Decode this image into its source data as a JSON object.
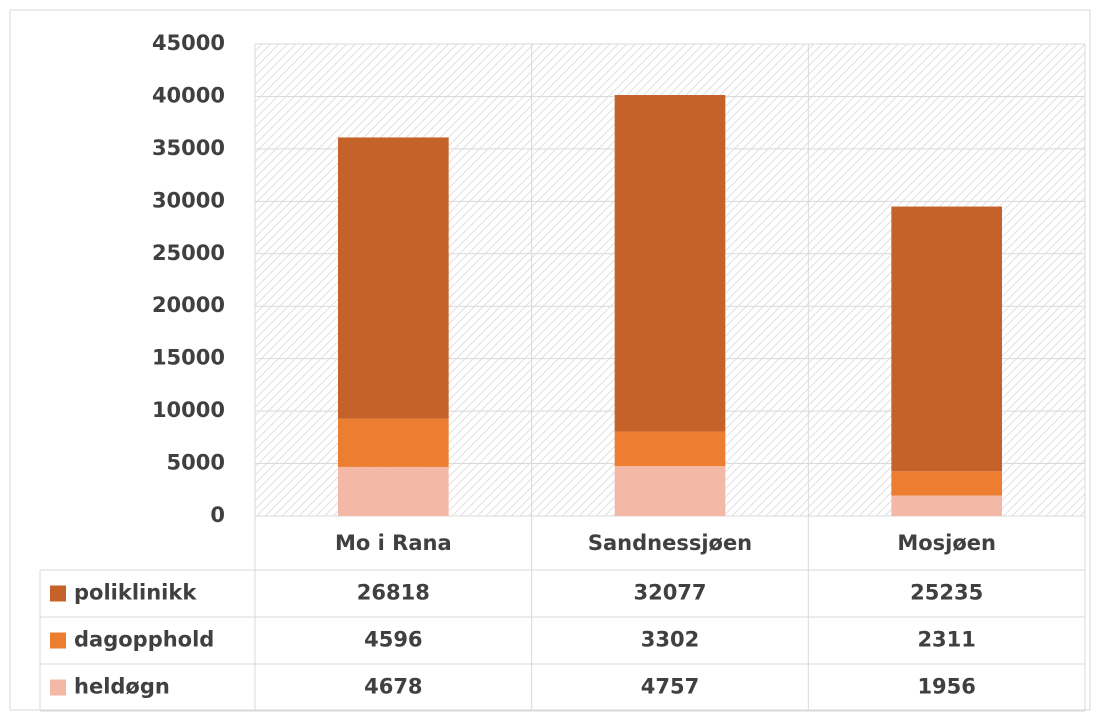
{
  "chart_data": {
    "type": "stacked_bar",
    "categories": [
      "Mo i Rana",
      "Sandnessjøen",
      "Mosjøen"
    ],
    "series": [
      {
        "name": "poliklinikk",
        "color": "#c4622a",
        "values": [
          26818,
          32077,
          25235
        ]
      },
      {
        "name": "dagopphold",
        "color": "#ed7d31",
        "values": [
          4596,
          3302,
          2311
        ]
      },
      {
        "name": "heldøgn",
        "color": "#f4b9a6",
        "values": [
          4678,
          4757,
          1956
        ]
      }
    ],
    "ylim": [
      0,
      45000
    ],
    "yticks": [
      0,
      5000,
      10000,
      15000,
      20000,
      25000,
      30000,
      35000,
      40000,
      45000
    ],
    "grid": true
  }
}
